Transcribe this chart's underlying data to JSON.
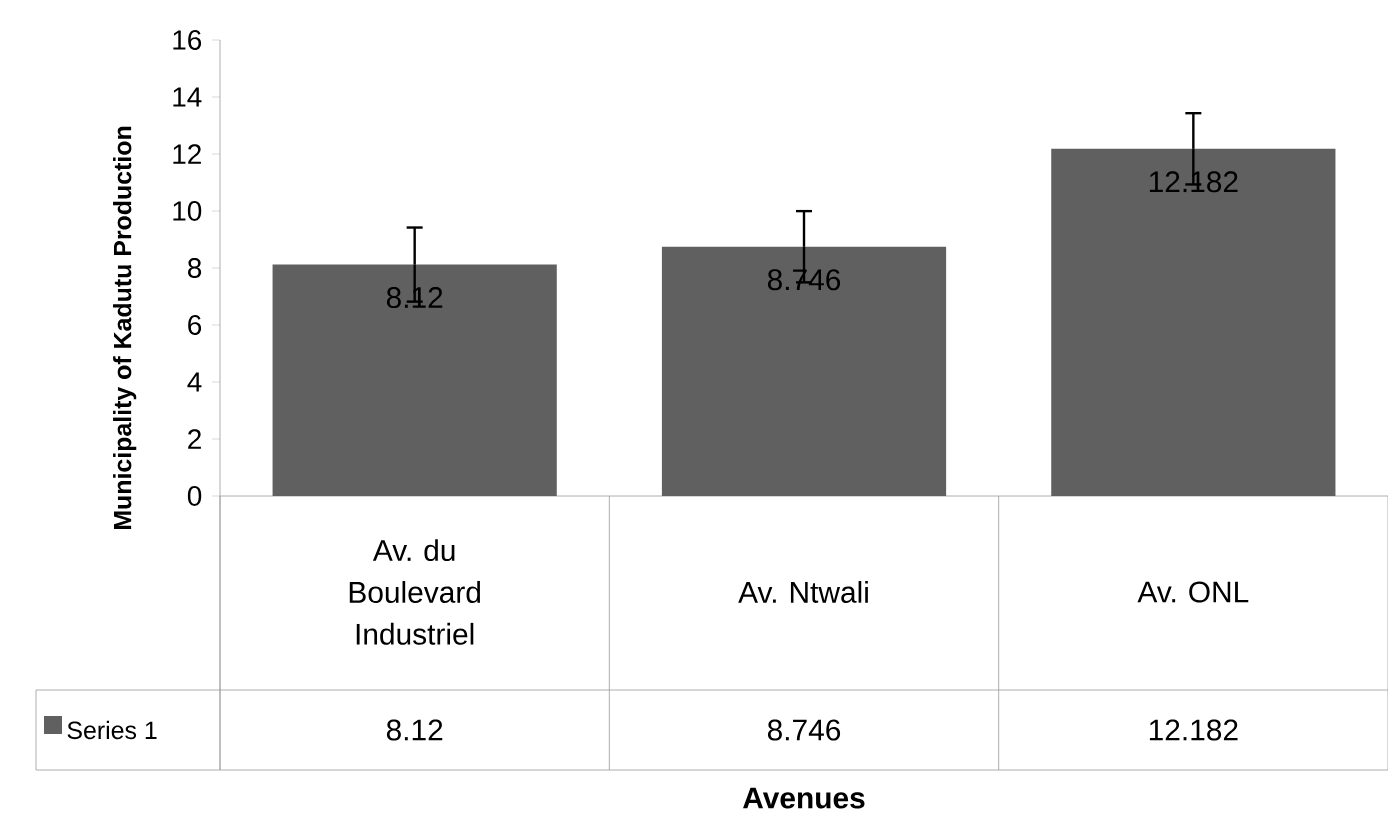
{
  "chart_data": {
    "type": "bar",
    "xlabel": "Avenues",
    "ylabel": "Municipality of Kadutu Production",
    "categories": [
      "Av. du Boulevard Industriel",
      "Av. Ntwali",
      "Av. ONL"
    ],
    "series": [
      {
        "name": "Series 1",
        "color": "#606060",
        "values": [
          8.12,
          8.746,
          12.182
        ],
        "errors": [
          1.3,
          1.25,
          1.25
        ]
      }
    ],
    "annotations": [
      {
        "text": "8.12",
        "x": "Av. du Boulevard Industriel",
        "y": 8.12
      },
      {
        "text": "8.746",
        "x": "Av. Ntwali",
        "y": 8.746
      },
      {
        "text": "12.182",
        "x": "Av. ONL",
        "y": 12.182
      }
    ],
    "ylim": [
      0,
      16
    ],
    "yticks": [
      0,
      2,
      4,
      6,
      8,
      10,
      12,
      14,
      16
    ],
    "data_labels": true,
    "legend": "bottom",
    "grid": false
  }
}
